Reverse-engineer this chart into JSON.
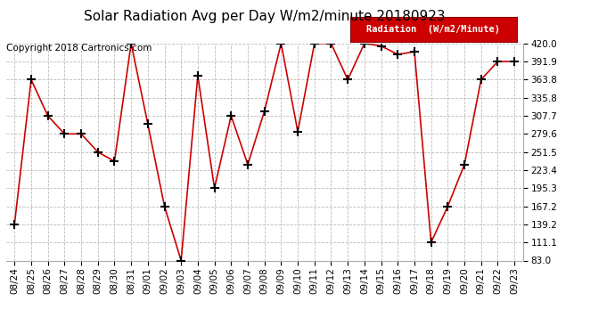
{
  "title": "Solar Radiation Avg per Day W/m2/minute 20180923",
  "copyright_text": "Copyright 2018 Cartronics.com",
  "legend_label": "Radiation  (W/m2/Minute)",
  "dates": [
    "08/24",
    "08/25",
    "08/26",
    "08/27",
    "08/28",
    "08/29",
    "08/30",
    "08/31",
    "09/01",
    "09/02",
    "09/03",
    "09/04",
    "09/05",
    "09/06",
    "09/07",
    "09/08",
    "09/09",
    "09/10",
    "09/11",
    "09/12",
    "09/13",
    "09/14",
    "09/15",
    "09/16",
    "09/17",
    "09/18",
    "09/19",
    "09/20",
    "09/21",
    "09/22",
    "09/23"
  ],
  "values": [
    139.2,
    363.8,
    307.7,
    279.6,
    279.6,
    251.5,
    237.0,
    420.0,
    295.0,
    167.2,
    83.0,
    370.0,
    195.3,
    307.7,
    232.0,
    315.0,
    420.0,
    283.0,
    420.0,
    420.0,
    363.8,
    420.0,
    416.0,
    403.0,
    407.0,
    111.1,
    167.2,
    232.0,
    363.8,
    391.9,
    391.9
  ],
  "ylim": [
    83.0,
    420.0
  ],
  "yticks": [
    83.0,
    111.1,
    139.2,
    167.2,
    195.3,
    223.4,
    251.5,
    279.6,
    307.7,
    335.8,
    363.8,
    391.9,
    420.0
  ],
  "line_color": "#cc0000",
  "marker": "+",
  "marker_color": "#000000",
  "marker_size": 7,
  "marker_edge_width": 1.5,
  "line_width": 1.2,
  "bg_color": "#ffffff",
  "grid_color": "#bbbbbb",
  "legend_bg": "#cc0000",
  "legend_text_color": "#ffffff",
  "title_fontsize": 11,
  "tick_fontsize": 7.5,
  "copyright_fontsize": 7.5,
  "legend_fontsize": 7.5
}
